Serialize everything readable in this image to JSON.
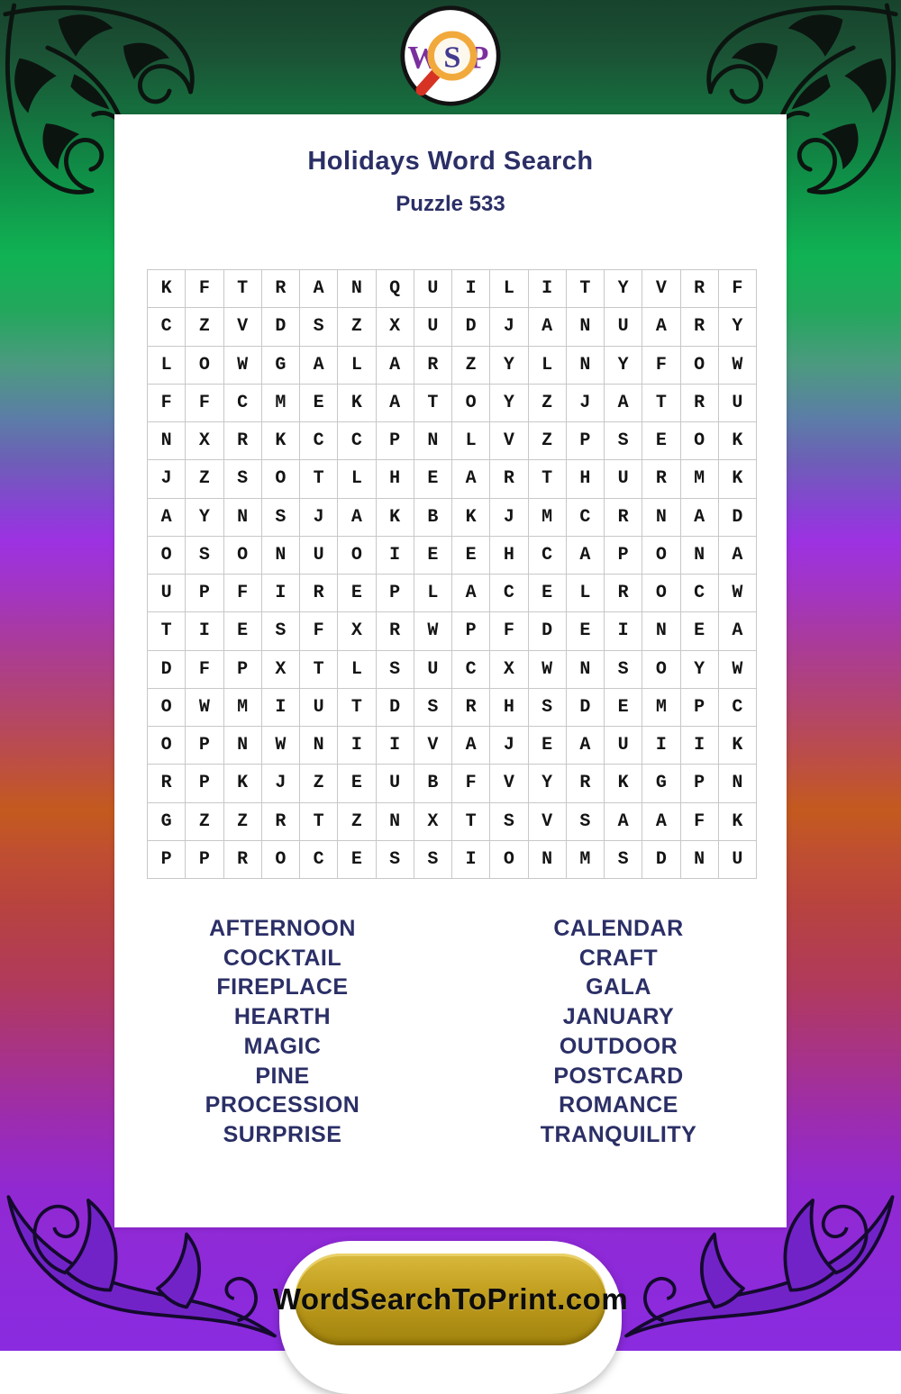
{
  "header": {
    "title": "Holidays Word Search",
    "subtitle": "Puzzle 533"
  },
  "logo": {
    "letter_w": "W",
    "letter_s": "S",
    "letter_p": "P"
  },
  "grid": {
    "rows": [
      "KFTRANQUILITYVRF",
      "CZVDSZXUDJANUARY",
      "LOWGALARZYLNYFOW",
      "FFCMEKATOYZJATRU",
      "NXRKCCPNLVZPSEOK",
      "JZSOTLHEARTHURMK",
      "AYNSJAKBKJMCRNAD",
      "OSONUOIEEHCAPONA",
      "UPFIREPLACELROCW",
      "TIESFXRWPFDEINEA",
      "DFPXTLSUCXWNSOYW",
      "OWMIUTDSRHSDEMPC",
      "OPNWNIIVAJEAUIIK",
      "RPKJZEUBFVYRKGPN",
      "GZZRTZNXTSVSAAFK",
      "PPROCESSIONMSDNU"
    ]
  },
  "word_lists": {
    "left": [
      "AFTERNOON",
      "COCKTAIL",
      "FIREPLACE",
      "HEARTH",
      "MAGIC",
      "PINE",
      "PROCESSION",
      "SURPRISE"
    ],
    "right": [
      "CALENDAR",
      "CRAFT",
      "GALA",
      "JANUARY",
      "OUTDOOR",
      "POSTCARD",
      "ROMANCE",
      "TRANQUILITY"
    ]
  },
  "footer": {
    "site": "WordSearchToPrint.com"
  },
  "colors": {
    "title_navy": "#2b2f66",
    "grid_letter": "#141414",
    "grid_border": "#c8c8c8",
    "button_gold": "#c3a020",
    "logo_purple": "#7b2f9e",
    "magnifier_orange": "#f2a93b",
    "magnifier_handle_red": "#d63324",
    "bg_green": "#10b254",
    "bg_purple": "#9c32e2",
    "bg_orange": "#c45a1e",
    "bg_violet": "#8a2be0"
  }
}
